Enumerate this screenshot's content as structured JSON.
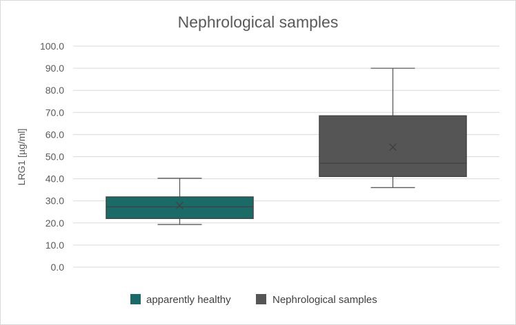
{
  "chart_data": {
    "type": "box",
    "title": "Nephrological samples",
    "ylabel": "LRG1 [µg/ml]",
    "xlabel": "",
    "ylim": [
      0,
      100
    ],
    "y_ticks": [
      "0.0",
      "10.0",
      "20.0",
      "30.0",
      "40.0",
      "50.0",
      "60.0",
      "70.0",
      "80.0",
      "90.0",
      "100.0"
    ],
    "grid": true,
    "legend_position": "bottom",
    "series": [
      {
        "name": "apparently healthy",
        "color": "#1a6b68",
        "min": 19.3,
        "q1": 22.0,
        "median": 27.3,
        "q3": 31.8,
        "max": 40.2,
        "mean": 27.9
      },
      {
        "name": "Nephrological samples",
        "color": "#555555",
        "min": 36.0,
        "q1": 41.0,
        "median": 47.0,
        "q3": 68.5,
        "max": 90.0,
        "mean": 54.3
      }
    ]
  }
}
